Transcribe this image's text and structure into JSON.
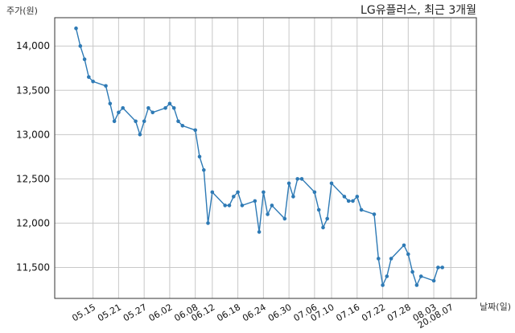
{
  "chart_data": {
    "type": "line",
    "title": "LG유플러스, 최근 3개월",
    "ylabel": "주가(원)",
    "xlabel": "날짜(일)",
    "ylim": [
      11150,
      14320
    ],
    "yticks": [
      {
        "value": 11500,
        "label": "11,500"
      },
      {
        "value": 12000,
        "label": "12,000"
      },
      {
        "value": 12500,
        "label": "12,500"
      },
      {
        "value": 13000,
        "label": "13,000"
      },
      {
        "value": 13500,
        "label": "13,500"
      },
      {
        "value": 14000,
        "label": "14,000"
      }
    ],
    "xticks": [
      {
        "date": "2020-05-15",
        "label": "05.15"
      },
      {
        "date": "2020-05-21",
        "label": "05.21"
      },
      {
        "date": "2020-05-27",
        "label": "05.27"
      },
      {
        "date": "2020-06-02",
        "label": "06.02"
      },
      {
        "date": "2020-06-08",
        "label": "06.08"
      },
      {
        "date": "2020-06-12",
        "label": "06.12"
      },
      {
        "date": "2020-06-18",
        "label": "06.18"
      },
      {
        "date": "2020-06-24",
        "label": "06.24"
      },
      {
        "date": "2020-06-30",
        "label": "06.30"
      },
      {
        "date": "2020-07-06",
        "label": "07.06"
      },
      {
        "date": "2020-07-10",
        "label": "07.10"
      },
      {
        "date": "2020-07-16",
        "label": "07.16"
      },
      {
        "date": "2020-07-22",
        "label": "07.22"
      },
      {
        "date": "2020-07-28",
        "label": "07.28"
      },
      {
        "date": "2020-08-03",
        "label": "08.03"
      },
      {
        "date": "2020-08-07",
        "label": "20.08.07"
      }
    ],
    "grid": true,
    "series": [
      {
        "color": "#2e7ab5",
        "points": [
          [
            "2020-05-11",
            14200
          ],
          [
            "2020-05-12",
            14000
          ],
          [
            "2020-05-13",
            13850
          ],
          [
            "2020-05-14",
            13650
          ],
          [
            "2020-05-15",
            13600
          ],
          [
            "2020-05-18",
            13550
          ],
          [
            "2020-05-19",
            13350
          ],
          [
            "2020-05-20",
            13150
          ],
          [
            "2020-05-21",
            13250
          ],
          [
            "2020-05-22",
            13300
          ],
          [
            "2020-05-25",
            13150
          ],
          [
            "2020-05-26",
            13000
          ],
          [
            "2020-05-27",
            13150
          ],
          [
            "2020-05-28",
            13300
          ],
          [
            "2020-05-29",
            13250
          ],
          [
            "2020-06-01",
            13300
          ],
          [
            "2020-06-02",
            13350
          ],
          [
            "2020-06-03",
            13300
          ],
          [
            "2020-06-04",
            13150
          ],
          [
            "2020-06-05",
            13100
          ],
          [
            "2020-06-08",
            13050
          ],
          [
            "2020-06-09",
            12750
          ],
          [
            "2020-06-10",
            12600
          ],
          [
            "2020-06-11",
            12000
          ],
          [
            "2020-06-12",
            12350
          ],
          [
            "2020-06-15",
            12200
          ],
          [
            "2020-06-16",
            12200
          ],
          [
            "2020-06-17",
            12300
          ],
          [
            "2020-06-18",
            12350
          ],
          [
            "2020-06-19",
            12200
          ],
          [
            "2020-06-22",
            12250
          ],
          [
            "2020-06-23",
            11900
          ],
          [
            "2020-06-24",
            12350
          ],
          [
            "2020-06-25",
            12100
          ],
          [
            "2020-06-26",
            12200
          ],
          [
            "2020-06-29",
            12050
          ],
          [
            "2020-06-30",
            12450
          ],
          [
            "2020-07-01",
            12300
          ],
          [
            "2020-07-02",
            12500
          ],
          [
            "2020-07-03",
            12500
          ],
          [
            "2020-07-06",
            12350
          ],
          [
            "2020-07-07",
            12150
          ],
          [
            "2020-07-08",
            11950
          ],
          [
            "2020-07-09",
            12050
          ],
          [
            "2020-07-10",
            12450
          ],
          [
            "2020-07-13",
            12300
          ],
          [
            "2020-07-14",
            12250
          ],
          [
            "2020-07-15",
            12250
          ],
          [
            "2020-07-16",
            12300
          ],
          [
            "2020-07-17",
            12150
          ],
          [
            "2020-07-20",
            12100
          ],
          [
            "2020-07-21",
            11600
          ],
          [
            "2020-07-22",
            11300
          ],
          [
            "2020-07-23",
            11400
          ],
          [
            "2020-07-24",
            11600
          ],
          [
            "2020-07-27",
            11750
          ],
          [
            "2020-07-28",
            11650
          ],
          [
            "2020-07-29",
            11450
          ],
          [
            "2020-07-30",
            11300
          ],
          [
            "2020-07-31",
            11400
          ],
          [
            "2020-08-03",
            11350
          ],
          [
            "2020-08-04",
            11500
          ],
          [
            "2020-08-05",
            11500
          ]
        ]
      }
    ]
  }
}
